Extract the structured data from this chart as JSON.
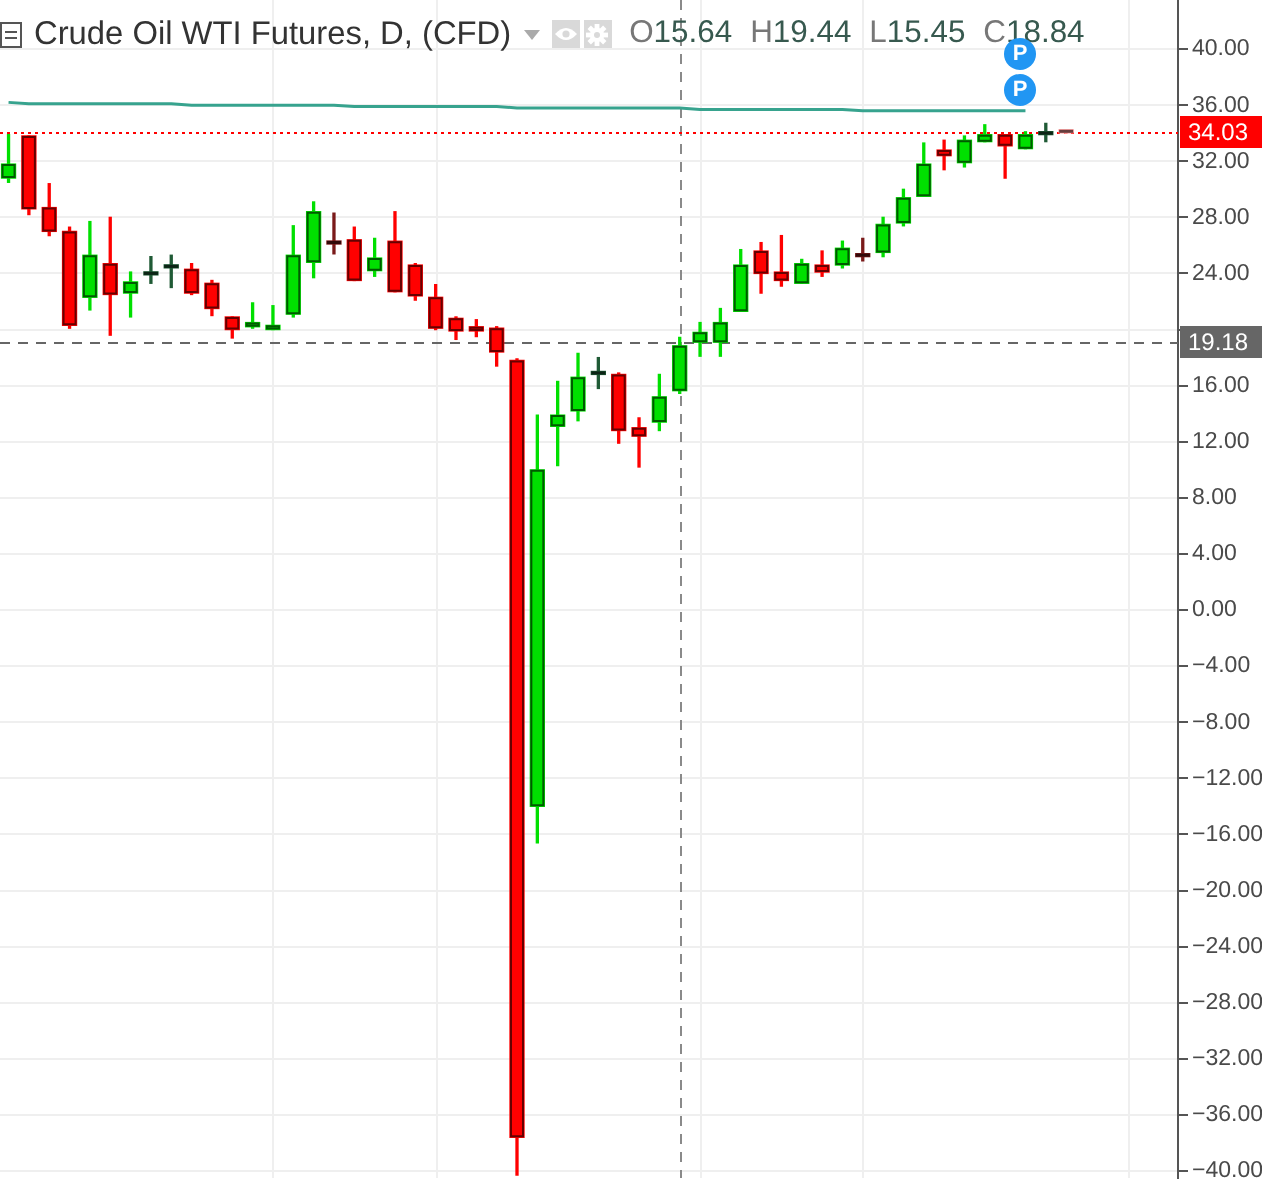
{
  "chart_data": {
    "type": "candlestick",
    "title": "Crude Oil WTI Futures, D, (CFD)",
    "subtitle": "O15.64 H19.44 L15.45 C18.84",
    "annotations": [
      "P",
      "P"
    ],
    "categories": [
      null,
      null,
      null,
      null,
      null,
      null,
      null,
      null,
      null,
      null,
      null,
      null,
      null,
      null,
      null,
      null,
      null,
      null,
      null,
      null,
      null,
      null,
      null,
      null,
      null,
      null,
      null,
      null,
      null,
      null,
      null,
      null,
      null,
      null,
      null,
      null,
      null,
      null,
      null,
      null,
      null,
      null,
      null,
      null,
      null,
      null,
      null,
      null,
      null,
      null,
      null,
      null,
      null
    ],
    "ohlc": [
      [
        30.8,
        33.9,
        30.5,
        31.8
      ],
      [
        33.8,
        33.8,
        28.2,
        28.6
      ],
      [
        28.7,
        30.4,
        26.7,
        27.0
      ],
      [
        27.0,
        27.3,
        20.1,
        20.3
      ],
      [
        22.3,
        27.7,
        21.4,
        25.3
      ],
      [
        24.7,
        28.0,
        19.6,
        22.5
      ],
      [
        22.6,
        24.1,
        20.9,
        23.4
      ],
      [
        23.9,
        25.2,
        23.3,
        24.0
      ],
      [
        24.4,
        25.3,
        23.0,
        24.6
      ],
      [
        24.3,
        24.7,
        22.5,
        22.6
      ],
      [
        23.3,
        23.5,
        21.0,
        21.5
      ],
      [
        20.9,
        20.9,
        19.4,
        20.0
      ],
      [
        20.2,
        21.9,
        20.1,
        20.5
      ],
      [
        20.0,
        21.7,
        20.0,
        20.3
      ],
      [
        21.1,
        27.4,
        20.9,
        25.3
      ],
      [
        24.8,
        29.1,
        23.7,
        28.4
      ],
      [
        26.2,
        28.3,
        25.4,
        26.1
      ],
      [
        26.4,
        27.3,
        23.5,
        23.5
      ],
      [
        24.2,
        26.5,
        23.8,
        25.1
      ],
      [
        26.3,
        28.4,
        22.7,
        22.7
      ],
      [
        24.6,
        24.7,
        22.1,
        22.4
      ],
      [
        22.3,
        23.2,
        20.0,
        20.1
      ],
      [
        20.8,
        20.9,
        19.3,
        19.9
      ],
      [
        20.2,
        20.7,
        19.5,
        19.9
      ],
      [
        20.1,
        20.2,
        17.4,
        18.4
      ],
      [
        17.8,
        17.9,
        -40.3,
        -37.6
      ],
      [
        -14.0,
        13.9,
        -16.6,
        10.0
      ],
      [
        13.1,
        16.3,
        10.3,
        13.9
      ],
      [
        14.2,
        18.3,
        13.5,
        16.6
      ],
      [
        16.8,
        18.0,
        15.8,
        16.9
      ],
      [
        16.8,
        16.9,
        11.9,
        12.8
      ],
      [
        13.0,
        13.7,
        10.2,
        12.4
      ],
      [
        13.4,
        16.8,
        12.8,
        15.2
      ],
      [
        15.64,
        19.44,
        15.45,
        18.84
      ],
      [
        19.1,
        20.5,
        18.1,
        19.8
      ],
      [
        19.1,
        21.5,
        18.1,
        20.5
      ],
      [
        21.3,
        25.7,
        21.3,
        24.6
      ],
      [
        25.6,
        26.2,
        22.6,
        24.0
      ],
      [
        24.1,
        26.7,
        23.1,
        23.5
      ],
      [
        23.3,
        25.0,
        23.3,
        24.7
      ],
      [
        24.6,
        25.6,
        23.8,
        24.1
      ],
      [
        24.6,
        26.3,
        24.4,
        25.8
      ],
      [
        25.3,
        26.5,
        24.9,
        25.2
      ],
      [
        25.5,
        28.0,
        25.2,
        27.5
      ],
      [
        27.6,
        30.0,
        27.4,
        29.4
      ],
      [
        29.5,
        33.3,
        29.5,
        31.8
      ],
      [
        32.8,
        33.5,
        31.4,
        32.4
      ],
      [
        31.9,
        33.8,
        31.6,
        33.5
      ],
      [
        33.4,
        34.6,
        33.4,
        33.9
      ],
      [
        33.9,
        33.9,
        30.8,
        33.1
      ],
      [
        32.9,
        34.1,
        32.9,
        33.9
      ],
      [
        33.9,
        34.7,
        33.4,
        34.0
      ],
      [
        34.1,
        34.1,
        34.0,
        34.03
      ]
    ],
    "colors": [
      "#00e000",
      "#ff0000",
      "#ff0000",
      "#ff0000",
      "#00e000",
      "#ff0000",
      "#00e000",
      "#1f5a35",
      "#1f5a35",
      "#ff0000",
      "#ff0000",
      "#ff0000",
      "#00e000",
      "#00e000",
      "#00e000",
      "#00e000",
      "#7a1a1a",
      "#ff0000",
      "#00e000",
      "#ff0000",
      "#ff0000",
      "#ff0000",
      "#ff0000",
      "#ff0000",
      "#ff0000",
      "#ff0000",
      "#00e000",
      "#00e000",
      "#00e000",
      "#1f5a35",
      "#ff0000",
      "#ff0000",
      "#00e000",
      "#00e000",
      "#00e000",
      "#00e000",
      "#00e000",
      "#ff0000",
      "#ff0000",
      "#00e000",
      "#ff0000",
      "#00e000",
      "#7a1a1a",
      "#00e000",
      "#00e000",
      "#00e000",
      "#ff0000",
      "#00e000",
      "#00e000",
      "#ff0000",
      "#00e000",
      "#1f5a35",
      "#ff9999"
    ],
    "series": [
      {
        "type": "line",
        "color": "#37a38e",
        "values": [
          36.2,
          36.1,
          36.1,
          36.1,
          36.1,
          36.1,
          36.1,
          36.1,
          36.1,
          36.0,
          36.0,
          36.0,
          36.0,
          36.0,
          36.0,
          36.0,
          36.0,
          35.9,
          35.9,
          35.9,
          35.9,
          35.9,
          35.9,
          35.9,
          35.9,
          35.8,
          35.8,
          35.8,
          35.8,
          35.8,
          35.8,
          35.8,
          35.8,
          35.8,
          35.7,
          35.7,
          35.7,
          35.7,
          35.7,
          35.7,
          35.7,
          35.7,
          35.6,
          35.6,
          35.6,
          35.6,
          35.6,
          35.6,
          35.6,
          35.6,
          35.6,
          null,
          null
        ]
      }
    ],
    "ylim": [
      -40.5,
      43.5
    ],
    "yticks": [
      {
        "value": -40,
        "label": "−40.00"
      },
      {
        "value": -36,
        "label": "−36.00"
      },
      {
        "value": -32,
        "label": "−32.00"
      },
      {
        "value": -28,
        "label": "−28.00"
      },
      {
        "value": -24,
        "label": "−24.00"
      },
      {
        "value": -20,
        "label": "−20.00"
      },
      {
        "value": -16,
        "label": "−16.00"
      },
      {
        "value": -12,
        "label": "−12.00"
      },
      {
        "value": -8,
        "label": "−8.00"
      },
      {
        "value": -4,
        "label": "−4.00"
      },
      {
        "value": 0,
        "label": "0.00"
      },
      {
        "value": 4,
        "label": "4.00"
      },
      {
        "value": 8,
        "label": "8.00"
      },
      {
        "value": 12,
        "label": "12.00"
      },
      {
        "value": 16,
        "label": "16.00"
      },
      {
        "value": 20,
        "label": null
      },
      {
        "value": 24,
        "label": "24.00"
      },
      {
        "value": 28,
        "label": "28.00"
      },
      {
        "value": 32,
        "label": "32.00"
      },
      {
        "value": 36,
        "label": "36.00"
      },
      {
        "value": 40,
        "label": "40.00"
      }
    ],
    "ref_lines": [
      {
        "axis": "y",
        "value": 34.03,
        "label": "34.03",
        "color": "#ff0000",
        "line_style": "dotted"
      },
      {
        "axis": "y",
        "value": 19.18,
        "label": "19.18",
        "color": "#666666",
        "line_style": "dashed"
      }
    ],
    "grid": true,
    "tick_labels": "y"
  }
}
